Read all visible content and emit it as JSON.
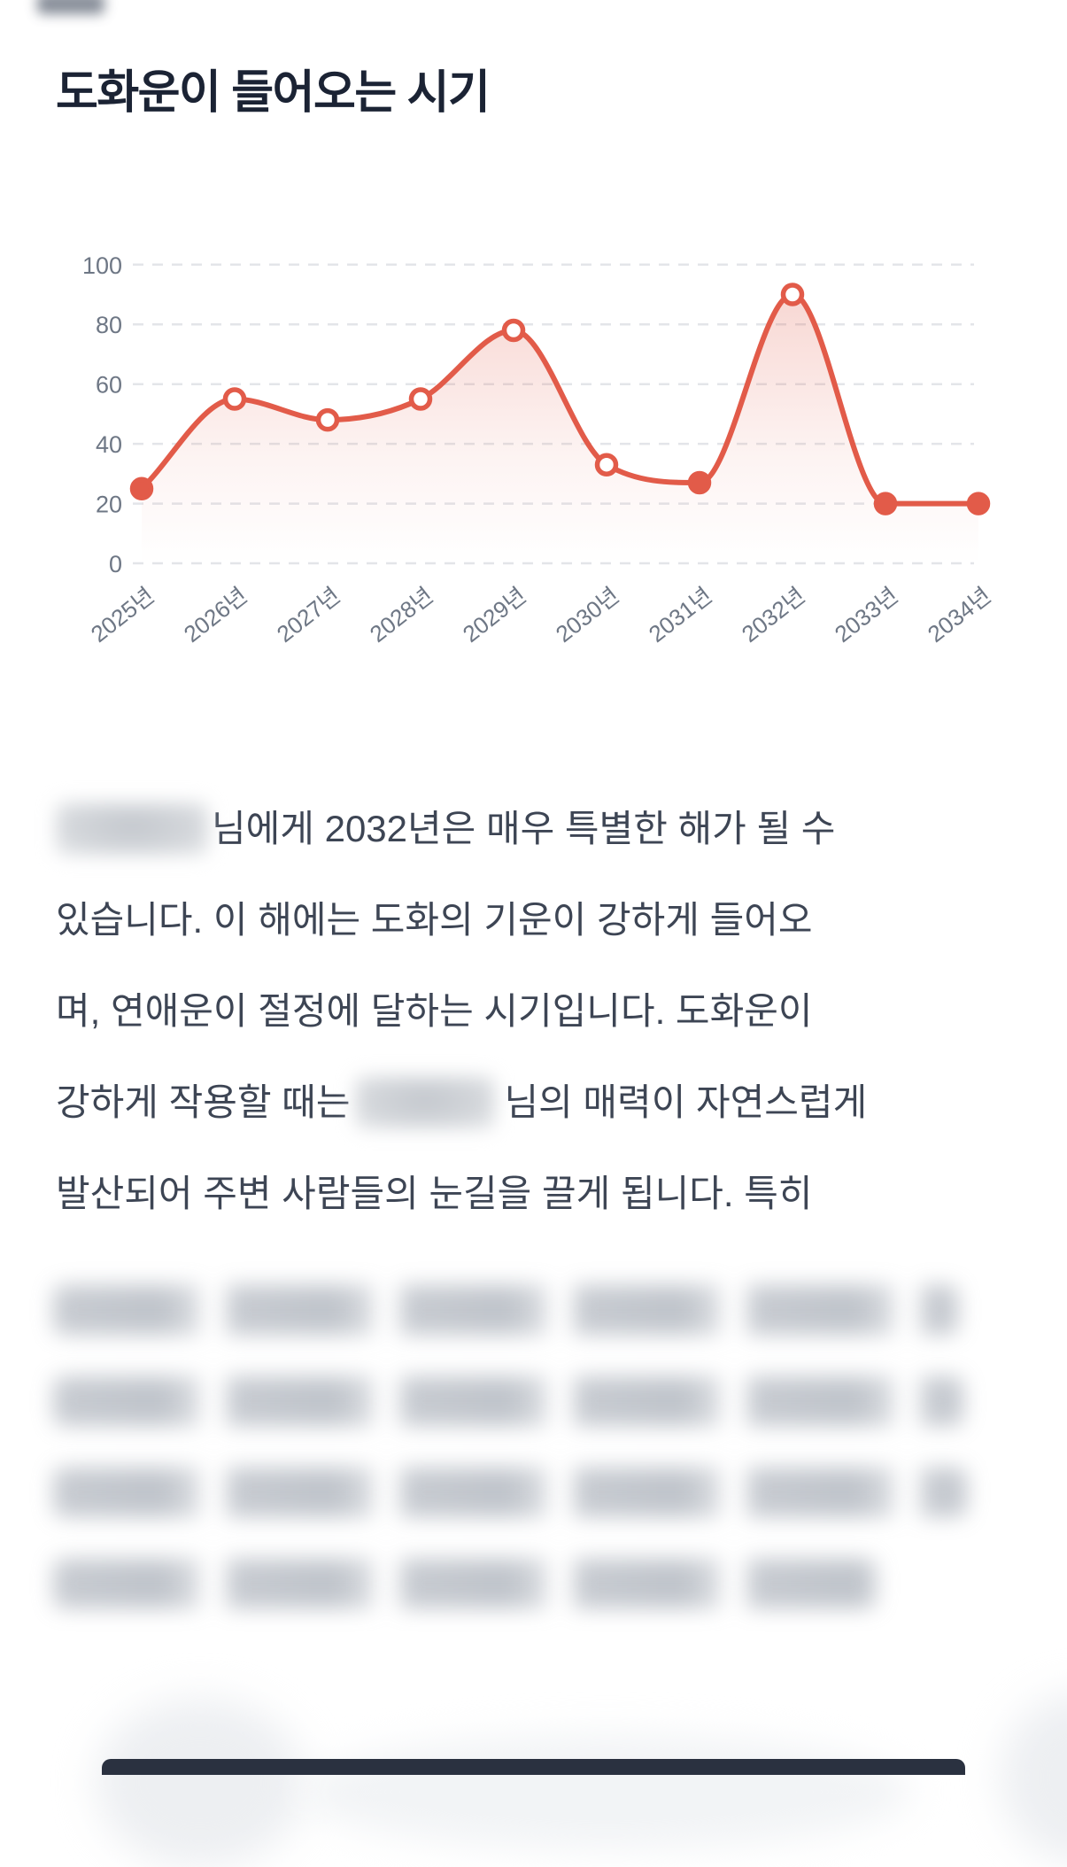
{
  "page": {
    "title": "도화운이 들어오는 시기"
  },
  "chart_data": {
    "type": "line",
    "title": "도화운이 들어오는 시기",
    "x_labels": [
      "2025년",
      "2026년",
      "2027년",
      "2028년",
      "2029년",
      "2030년",
      "2031년",
      "2032년",
      "2033년",
      "2034년"
    ],
    "values": [
      25,
      55,
      48,
      55,
      78,
      33,
      27,
      90,
      20,
      20
    ],
    "marker_filled": [
      true,
      false,
      false,
      false,
      false,
      false,
      true,
      false,
      true,
      true
    ],
    "yticks": [
      0,
      20,
      40,
      60,
      80,
      100
    ],
    "ylim": [
      0,
      100
    ],
    "grid": "horizontal-dashed",
    "legend_position": "none",
    "line_color": "#e25b49",
    "marker_hollow_fill": "#ffffff",
    "area_fade_color_rgb": "225,90,72",
    "axis_text_color": "#6e7785",
    "grid_color": "#e3e5e9"
  },
  "paragraph": {
    "lines": [
      {
        "parts": [
          {
            "blur": "redacted-name"
          },
          {
            "text": "님에게 2032년은 매우 특별한 해가 될 수"
          }
        ]
      },
      {
        "parts": [
          {
            "text": "있습니다. 이 해에는 도화의 기운이 강하게 들어오"
          }
        ]
      },
      {
        "parts": [
          {
            "text": "며, 연애운이 절정에 달하는 시기입니다. 도화운이"
          }
        ]
      },
      {
        "parts": [
          {
            "text": "강하게 작용할 때는"
          },
          {
            "blur": "redacted-name"
          },
          {
            "text": "님의 매력이 자연스럽게"
          }
        ]
      },
      {
        "parts": [
          {
            "text": "발산되어 주변 사람들의 눈길을 끌게 됩니다. 특히"
          }
        ]
      }
    ],
    "redacted_line_widths": [
      1022,
      1028,
      1032,
      930
    ]
  }
}
